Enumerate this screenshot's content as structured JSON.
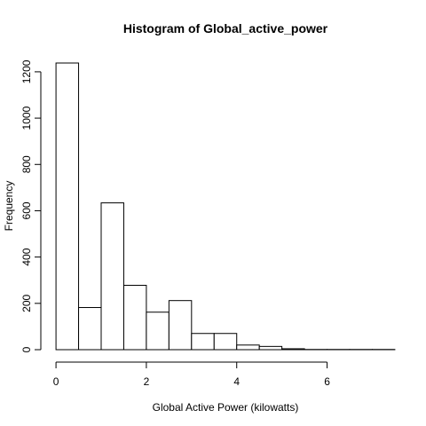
{
  "chart_data": {
    "type": "bar",
    "title": "Histogram of Global_active_power",
    "xlabel": "Global Active Power (kilowatts)",
    "ylabel": "Frequency",
    "bin_edges": [
      0,
      0.5,
      1.0,
      1.5,
      2.0,
      2.5,
      3.0,
      3.5,
      4.0,
      4.5,
      5.0,
      5.5,
      6.0,
      6.5,
      7.0,
      7.5
    ],
    "values": [
      1238,
      182,
      634,
      278,
      162,
      212,
      70,
      70,
      20,
      14,
      4,
      1,
      1,
      1,
      1
    ],
    "xlim": [
      -0.1,
      7.6
    ],
    "ylim": [
      0,
      1238
    ],
    "x_ticks": [
      0,
      2,
      4,
      6
    ],
    "y_ticks": [
      0,
      200,
      400,
      600,
      800,
      1000,
      1200
    ],
    "grid": false,
    "bar_fill": "#ffffff",
    "bar_stroke": "#000000"
  }
}
